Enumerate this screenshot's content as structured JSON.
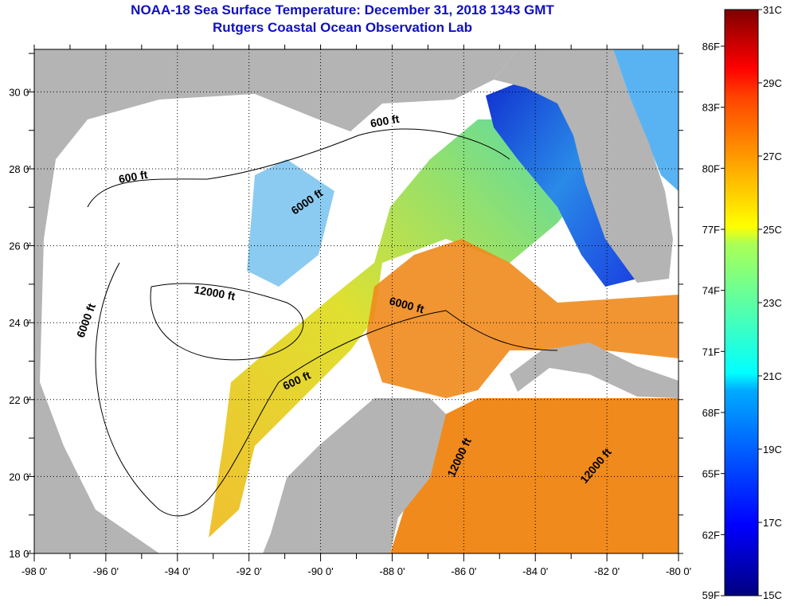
{
  "title": "NOAA-18 Sea Surface Temperature:  December 31, 2018 1343 GMT",
  "subtitle": "Rutgers Coastal Ocean Observation Lab",
  "map": {
    "lon_range": [
      -98,
      -80
    ],
    "lat_range": [
      18,
      31
    ],
    "lon_labels": [
      {
        "lon": -98,
        "label": "-98 0'"
      },
      {
        "lon": -96,
        "label": "-96 0'"
      },
      {
        "lon": -94,
        "label": "-94 0'"
      },
      {
        "lon": -92,
        "label": "-92 0'"
      },
      {
        "lon": -90,
        "label": "-90 0'"
      },
      {
        "lon": -88,
        "label": "-88 0'"
      },
      {
        "lon": -86,
        "label": "-86 0'"
      },
      {
        "lon": -84,
        "label": "-84 0'"
      },
      {
        "lon": -82,
        "label": "-82 0'"
      },
      {
        "lon": -80,
        "label": "-80 0'"
      }
    ],
    "lat_labels": [
      {
        "lat": 18,
        "label": "18 0'"
      },
      {
        "lat": 20,
        "label": "20 0'"
      },
      {
        "lat": 22,
        "label": "22 0'"
      },
      {
        "lat": 24,
        "label": "24 0'"
      },
      {
        "lat": 26,
        "label": "26 0'"
      },
      {
        "lat": 28,
        "label": "28 0'"
      },
      {
        "lat": 30,
        "label": "30 0'"
      }
    ],
    "contour_labels": [
      "600 ft",
      "600 ft",
      "600 ft",
      "6000 ft",
      "6000 ft",
      "6000 ft",
      "12000 ft",
      "12000 ft",
      "12000 ft"
    ],
    "colors": {
      "land": "#b4b4b4",
      "cloud": "#ffffff",
      "warm": "#f08a1c",
      "mid": "#e6e028",
      "cool": "#7ee07a",
      "cold": "#1636d8"
    }
  },
  "colorbar": {
    "range_c": [
      15,
      31
    ],
    "celsius_labels": [
      {
        "v": 15,
        "label": "15C"
      },
      {
        "v": 17,
        "label": "17C"
      },
      {
        "v": 19,
        "label": "19C"
      },
      {
        "v": 21,
        "label": "21C"
      },
      {
        "v": 23,
        "label": "23C"
      },
      {
        "v": 25,
        "label": "25C"
      },
      {
        "v": 27,
        "label": "27C"
      },
      {
        "v": 29,
        "label": "29C"
      },
      {
        "v": 31,
        "label": "31C"
      }
    ],
    "fahrenheit_labels": [
      {
        "v": 59,
        "label": "59F"
      },
      {
        "v": 62,
        "label": "62F"
      },
      {
        "v": 65,
        "label": "65F"
      },
      {
        "v": 68,
        "label": "68F"
      },
      {
        "v": 71,
        "label": "71F"
      },
      {
        "v": 74,
        "label": "74F"
      },
      {
        "v": 77,
        "label": "77F"
      },
      {
        "v": 80,
        "label": "80F"
      },
      {
        "v": 83,
        "label": "83F"
      },
      {
        "v": 86,
        "label": "86F"
      }
    ]
  }
}
